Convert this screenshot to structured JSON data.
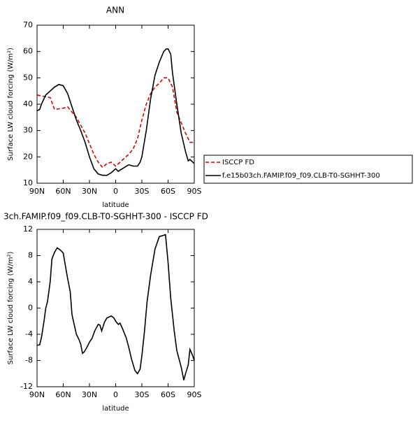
{
  "chart_data": [
    {
      "type": "line",
      "title": "ANN",
      "xlabel": "latitude",
      "ylabel": "Surface LW cloud forcing (W/m²)",
      "xlim": [
        90,
        -90
      ],
      "ylim": [
        10,
        70
      ],
      "xticks": [
        {
          "value": 90,
          "label": "90N"
        },
        {
          "value": 60,
          "label": "60N"
        },
        {
          "value": 30,
          "label": "30N"
        },
        0,
        {
          "value": -30,
          "label": "30S"
        },
        {
          "value": -60,
          "label": "60S"
        },
        {
          "value": -90,
          "label": "90S"
        }
      ],
      "yticks": [
        10,
        20,
        30,
        40,
        50,
        60,
        70
      ],
      "legend": "right",
      "series": [
        {
          "name": "ISCCP FD",
          "color": "#e00000",
          "line_style": "dashed",
          "x": [
            90,
            75,
            70,
            60,
            55,
            45,
            35,
            25,
            20,
            15,
            10,
            5,
            0,
            -5,
            -10,
            -15,
            -20,
            -25,
            -30,
            -35,
            -40,
            -45,
            -50,
            -55,
            -60,
            -65,
            -70,
            -75,
            -80,
            -85,
            -90
          ],
          "values": [
            43.5,
            42.5,
            38,
            38.5,
            39,
            35,
            29,
            21,
            18,
            16,
            17.5,
            18,
            16.5,
            18,
            19.5,
            21,
            23,
            27,
            34,
            40,
            44,
            46.5,
            48,
            50,
            50,
            46.5,
            37,
            33,
            29,
            25.5,
            25.5
          ]
        },
        {
          "name": "f.e15b03ch.FAMIP.f09_f09.CLB-T0-SGHHT-300",
          "color": "#000000",
          "line_style": "solid",
          "x": [
            90,
            87,
            85,
            80,
            75,
            70,
            65,
            60,
            55,
            50,
            45,
            40,
            35,
            30,
            25,
            20,
            15,
            10,
            5,
            0,
            -3,
            -5,
            -10,
            -15,
            -20,
            -25,
            -28,
            -30,
            -35,
            -40,
            -45,
            -50,
            -55,
            -58,
            -60,
            -63,
            -65,
            -70,
            -75,
            -80,
            -83,
            -85,
            -90
          ],
          "values": [
            37.5,
            38,
            40,
            43.5,
            45,
            46.5,
            47.5,
            47,
            44,
            39,
            34,
            30,
            25.5,
            20,
            15.5,
            13.5,
            13,
            13,
            14,
            15.5,
            14.5,
            15,
            16,
            17,
            16.5,
            16.5,
            18,
            20,
            30,
            42,
            51,
            56,
            60,
            61,
            61,
            59,
            52,
            40,
            29,
            22,
            18.5,
            19,
            17.5
          ]
        }
      ]
    },
    {
      "type": "line",
      "title": "3ch.FAMIP.f09_f09.CLB-T0-SGHHT-300 - ISCCP FD",
      "xlabel": "latitude",
      "ylabel": "Surface LW cloud forcing (W/m²)",
      "xlim": [
        90,
        -90
      ],
      "ylim": [
        -12,
        12
      ],
      "xticks": [
        {
          "value": 90,
          "label": "90N"
        },
        {
          "value": 60,
          "label": "60N"
        },
        {
          "value": 30,
          "label": "30N"
        },
        0,
        {
          "value": -30,
          "label": "30S"
        },
        {
          "value": -60,
          "label": "60S"
        },
        {
          "value": -90,
          "label": "90S"
        }
      ],
      "yticks": [
        -12,
        -8,
        -4,
        0,
        4,
        8,
        12
      ],
      "series": [
        {
          "color": "#000000",
          "line_style": "solid",
          "x": [
            90,
            87,
            85,
            82,
            80,
            78,
            75,
            73,
            70,
            67,
            63,
            60,
            57,
            55,
            52,
            50,
            45,
            42,
            40,
            38,
            36,
            33,
            30,
            27,
            24,
            20,
            18,
            16,
            13,
            10,
            5,
            2,
            0,
            -3,
            -5,
            -8,
            -12,
            -15,
            -18,
            -22,
            -25,
            -28,
            -30,
            -33,
            -36,
            -40,
            -45,
            -50,
            -55,
            -57,
            -60,
            -63,
            -67,
            -70,
            -75,
            -78,
            -80,
            -83,
            -85,
            -88,
            -90
          ],
          "values": [
            -5.7,
            -5.6,
            -4.5,
            -2,
            0,
            1,
            4,
            7.5,
            8.5,
            9.2,
            8.8,
            8.4,
            6,
            4.5,
            2.5,
            -1,
            -4,
            -4.8,
            -5.5,
            -6.9,
            -6.7,
            -6,
            -5.2,
            -4.6,
            -3.5,
            -2.5,
            -2.6,
            -3.5,
            -2.2,
            -1.5,
            -1.2,
            -1.5,
            -2,
            -2.5,
            -2.3,
            -3.2,
            -4.5,
            -6,
            -7.7,
            -9.5,
            -10,
            -9.3,
            -7.3,
            -3.5,
            1,
            5,
            9,
            10.9,
            11.1,
            11.2,
            7,
            1.5,
            -3.5,
            -6.5,
            -9,
            -11,
            -10,
            -8.7,
            -6.3,
            -7.2,
            -8
          ]
        }
      ]
    }
  ]
}
